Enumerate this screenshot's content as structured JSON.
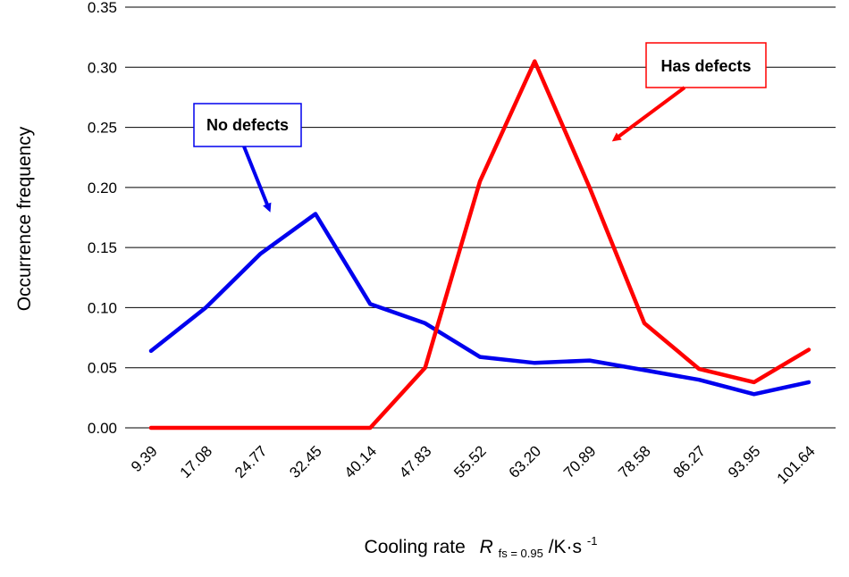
{
  "chart_data": {
    "type": "line",
    "categories": [
      "9.39",
      "17.08",
      "24.77",
      "32.45",
      "40.14",
      "47.83",
      "55.52",
      "63.20",
      "70.89",
      "78.58",
      "86.27",
      "93.95",
      "101.64"
    ],
    "series": [
      {
        "name": "No defects",
        "color": "#0000ee",
        "values": [
          0.064,
          0.1,
          0.145,
          0.178,
          0.103,
          0.087,
          0.059,
          0.054,
          0.056,
          0.048,
          0.04,
          0.028,
          0.038
        ]
      },
      {
        "name": "Has defects",
        "color": "#ff0000",
        "values": [
          0.0,
          0.0,
          0.0,
          0.0,
          0.0,
          0.05,
          0.205,
          0.305,
          0.2,
          0.087,
          0.049,
          0.038,
          0.065
        ]
      }
    ],
    "ylabel": "Occurrence frequency",
    "xlabel": {
      "prefix": "Cooling rate",
      "symbol": "R",
      "subscript": "fs = 0.95",
      "unit": "/K·s",
      "exponent": "-1"
    },
    "ylim": [
      0,
      0.35
    ],
    "yticks": [
      "0.00",
      "0.05",
      "0.10",
      "0.15",
      "0.20",
      "0.25",
      "0.30",
      "0.35"
    ],
    "grid": "horizontal",
    "annotations": [
      {
        "text": "No defects",
        "series": "No defects",
        "border": "#0000ee",
        "arrow_color": "#0000ee"
      },
      {
        "text": "Has defects",
        "series": "Has defects",
        "border": "#ff0000",
        "arrow_color": "#ff0000"
      }
    ]
  }
}
